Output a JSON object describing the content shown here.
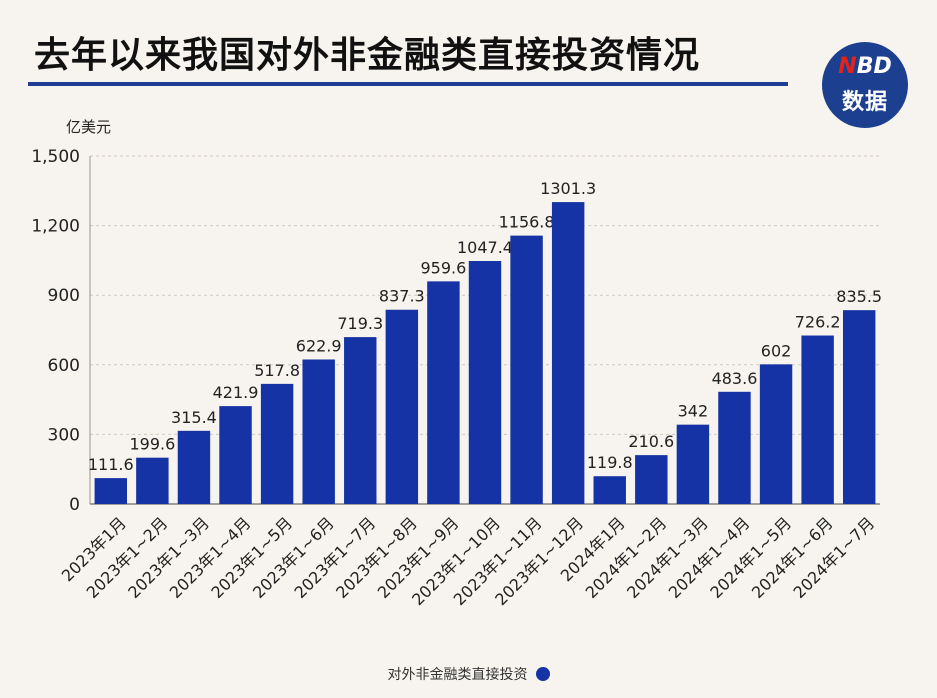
{
  "header": {
    "title": "去年以来我国对外非金融类直接投资情况"
  },
  "logo": {
    "top": "NBD",
    "n_letter": "N",
    "rest_letters": "BD",
    "bottom": "数据"
  },
  "colors": {
    "bar": "#1533a4",
    "title_rule": "#1f3f94",
    "logo_bg": "#1c3f8f"
  },
  "chart_data": {
    "type": "bar",
    "title": "去年以来我国对外非金融类直接投资情况",
    "unit_label": "亿美元",
    "ylim": [
      0,
      1500
    ],
    "yticks": [
      0,
      300,
      600,
      900,
      1200,
      1500
    ],
    "ytick_labels": [
      "0",
      "300",
      "600",
      "900",
      "1,200",
      "1,500"
    ],
    "grid": true,
    "legend_position": "bottom",
    "categories": [
      "2023年1月",
      "2023年1~2月",
      "2023年1~3月",
      "2023年1~4月",
      "2023年1~5月",
      "2023年1~6月",
      "2023年1~7月",
      "2023年1~8月",
      "2023年1~9月",
      "2023年1~10月",
      "2023年1~11月",
      "2023年1~12月",
      "2024年1月",
      "2024年1~2月",
      "2024年1~3月",
      "2024年1~4月",
      "2024年1~5月",
      "2024年1~6月",
      "2024年1~7月"
    ],
    "series": [
      {
        "name": "对外非金融类直接投资",
        "values": [
          111.6,
          199.6,
          315.4,
          421.9,
          517.8,
          622.9,
          719.3,
          837.3,
          959.6,
          1047.4,
          1156.8,
          1301.3,
          119.8,
          210.6,
          342,
          483.6,
          602,
          726.2,
          835.5
        ],
        "value_labels": [
          "111.6",
          "199.6",
          "315.4",
          "421.9",
          "517.8",
          "622.9",
          "719.3",
          "837.3",
          "959.6",
          "1047.4",
          "1156.8",
          "1301.3",
          "119.8",
          "210.6",
          "342",
          "483.6",
          "602",
          "726.2",
          "835.5"
        ]
      }
    ]
  }
}
